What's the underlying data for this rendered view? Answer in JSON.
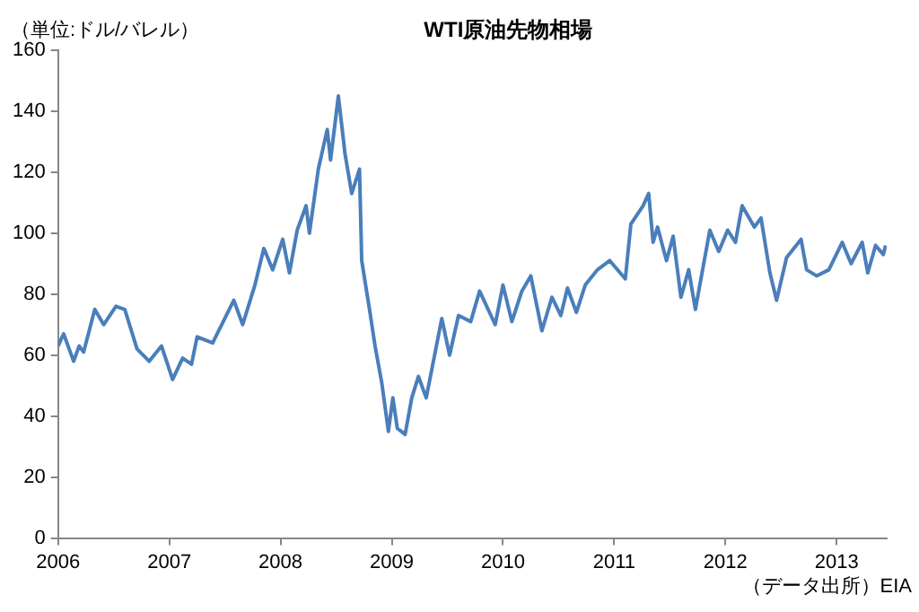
{
  "chart_data": {
    "type": "line",
    "title": "WTI原油先物相場",
    "ylabel": "（単位:ドル/バレル）",
    "annotations": [
      "（データ出所）EIA"
    ],
    "x": [
      2006.0,
      2006.05,
      2006.11,
      2006.14,
      2006.19,
      2006.23,
      2006.33,
      2006.41,
      2006.52,
      2006.6,
      2006.71,
      2006.82,
      2006.93,
      2007.03,
      2007.12,
      2007.2,
      2007.25,
      2007.39,
      2007.58,
      2007.66,
      2007.77,
      2007.85,
      2007.93,
      2008.02,
      2008.08,
      2008.15,
      2008.23,
      2008.26,
      2008.34,
      2008.42,
      2008.45,
      2008.52,
      2008.58,
      2008.64,
      2008.71,
      2008.73,
      2008.8,
      2008.85,
      2008.91,
      2008.97,
      2009.01,
      2009.05,
      2009.12,
      2009.18,
      2009.24,
      2009.31,
      2009.38,
      2009.45,
      2009.52,
      2009.6,
      2009.71,
      2009.79,
      2009.93,
      2010.0,
      2010.08,
      2010.17,
      2010.25,
      2010.35,
      2010.44,
      2010.52,
      2010.58,
      2010.66,
      2010.74,
      2010.85,
      2010.96,
      2011.1,
      2011.15,
      2011.26,
      2011.31,
      2011.35,
      2011.39,
      2011.47,
      2011.53,
      2011.6,
      2011.67,
      2011.73,
      2011.86,
      2011.94,
      2012.02,
      2012.09,
      2012.15,
      2012.26,
      2012.32,
      2012.4,
      2012.46,
      2012.55,
      2012.68,
      2012.73,
      2012.82,
      2012.93,
      2013.05,
      2013.13,
      2013.23,
      2013.28,
      2013.35,
      2013.42,
      2013.44
    ],
    "series": [
      {
        "color": "#4a7ebb",
        "values": [
          63,
          67,
          61,
          58,
          63,
          61,
          75,
          70,
          76,
          75,
          62,
          58,
          63,
          52,
          59,
          57,
          66,
          64,
          78,
          70,
          83,
          95,
          88,
          98,
          87,
          101,
          109,
          100,
          121,
          134,
          124,
          145,
          126,
          113,
          121,
          91,
          75,
          63,
          51,
          35,
          46,
          36,
          34,
          46,
          53,
          46,
          59,
          72,
          60,
          73,
          71,
          81,
          70,
          83,
          71,
          81,
          86,
          68,
          79,
          73,
          82,
          74,
          83,
          88,
          91,
          85,
          103,
          109,
          113,
          97,
          102,
          91,
          99,
          79,
          88,
          75,
          101,
          94,
          101,
          97,
          109,
          102,
          105,
          87,
          78,
          92,
          98,
          88,
          86,
          88,
          97,
          90,
          97,
          87,
          96,
          93,
          96
        ]
      }
    ],
    "xlim": [
      2006,
      2013.45
    ],
    "xticks": [
      2006,
      2007,
      2008,
      2009,
      2010,
      2011,
      2012,
      2013
    ],
    "ylim": [
      0,
      160
    ],
    "yticks": [
      0,
      20,
      40,
      60,
      80,
      100,
      120,
      140,
      160
    ],
    "grid": false,
    "legend": false,
    "marker": "none",
    "line_style": "solid"
  }
}
